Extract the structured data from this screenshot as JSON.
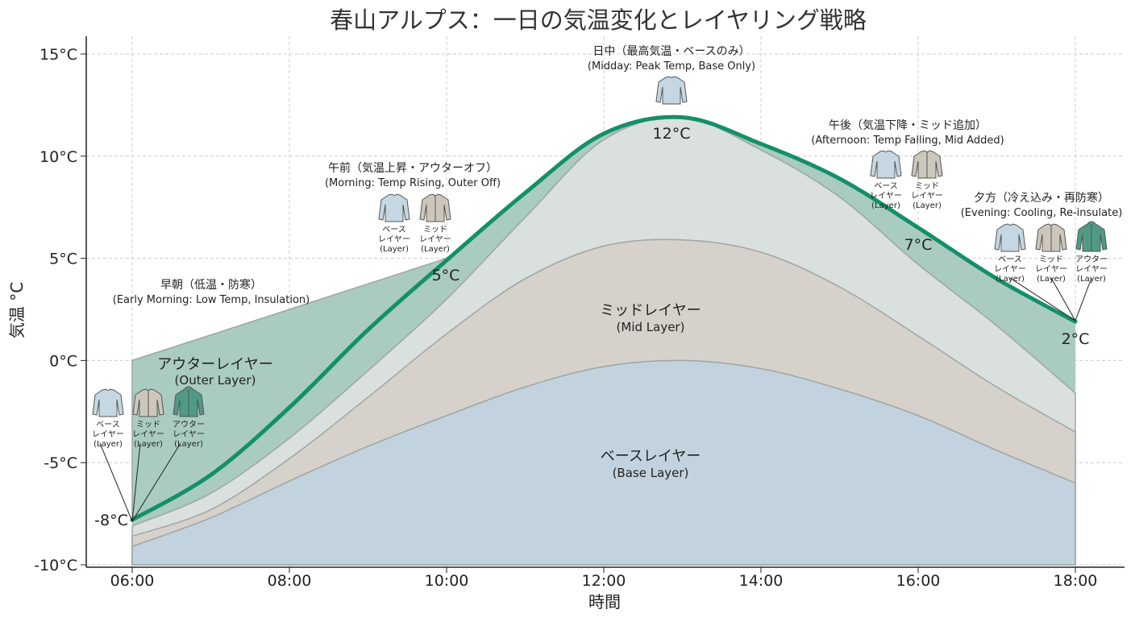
{
  "chart_data": {
    "type": "area",
    "title": "春山アルプス：一日の気温変化とレイヤリング戦略",
    "xlabel": "時間",
    "ylabel": "気温 °C",
    "x": [
      "06:00",
      "07:00",
      "08:00",
      "09:00",
      "10:00",
      "11:00",
      "12:00",
      "13:00",
      "14:00",
      "15:00",
      "16:00",
      "17:00",
      "18:00"
    ],
    "x_tick_labels": [
      "06:00",
      "08:00",
      "10:00",
      "12:00",
      "14:00",
      "16:00",
      "18:00"
    ],
    "y_tick_labels": [
      "-10°C",
      "-5°C",
      "0°C",
      "5°C",
      "10°C",
      "15°C"
    ],
    "ylim": [
      -10,
      15
    ],
    "xlim": [
      "05:30",
      "19:30"
    ],
    "grid": true,
    "series": [
      {
        "key": "temperature",
        "values": [
          -7.8,
          -5.6,
          -2.3,
          1.5,
          4.9,
          8.2,
          11.1,
          11.9,
          10.6,
          8.9,
          6.5,
          4.0,
          1.9
        ]
      },
      {
        "key": "base",
        "values": [
          -9.1,
          -7.7,
          -5.9,
          -4.2,
          -2.7,
          -1.3,
          -0.3,
          0.0,
          -0.4,
          -1.4,
          -2.7,
          -4.4,
          -6.0
        ]
      },
      {
        "key": "mid",
        "values": [
          -8.6,
          -7.3,
          -4.8,
          -1.8,
          1.3,
          4.0,
          5.6,
          5.9,
          5.3,
          3.6,
          1.2,
          -1.3,
          -3.5
        ]
      },
      {
        "key": "upper",
        "values": [
          -8.1,
          -6.5,
          -3.8,
          -0.5,
          3.0,
          7.0,
          10.8,
          11.9,
          10.3,
          8.0,
          4.7,
          1.7,
          -1.6
        ]
      },
      {
        "key": "outer",
        "x": [
          "06:00",
          "10:00"
        ],
        "values": [
          0,
          5
        ]
      }
    ],
    "band_labels": [
      {
        "jp": "アウターレイヤー",
        "en": "(Outer Layer)"
      },
      {
        "jp": "ミッドレイヤー",
        "en": "(Mid Layer)"
      },
      {
        "jp": "ベースレイヤー",
        "en": "(Base Layer)"
      }
    ],
    "point_labels": [
      "-8°C",
      "5°C",
      "12°C",
      "7°C",
      "2°C"
    ],
    "phases": [
      {
        "jp": "早朝（低温・防寒）",
        "en": "(Early Morning: Low Temp, Insulation)",
        "items": [
          "base",
          "mid",
          "outer"
        ]
      },
      {
        "jp": "午前（気温上昇・アウターオフ）",
        "en": "(Morning: Temp Rising, Outer Off)",
        "items": [
          "base",
          "mid"
        ]
      },
      {
        "jp": "日中（最高気温・ベースのみ）",
        "en": "(Midday: Peak Temp, Base Only)",
        "items": [
          "base"
        ]
      },
      {
        "jp": "午後（気温下降・ミッド追加）",
        "en": "(Afternoon: Temp Falling, Mid Added)",
        "items": [
          "base",
          "mid"
        ]
      },
      {
        "jp": "夕方（冷え込み・再防寒）",
        "en": "(Evening: Cooling, Re-insulate)",
        "items": [
          "base",
          "mid",
          "outer"
        ]
      }
    ],
    "garments": {
      "base": {
        "icon": "long-sleeve-shirt-icon",
        "line1": "ベース",
        "line2": "レイヤー",
        "line3": "(Layer)",
        "color": "#c4d7e2"
      },
      "mid": {
        "icon": "zip-jacket-icon",
        "line1": "ミッド",
        "line2": "レイヤー",
        "line3": "(Layer)",
        "color": "#cdc7bb"
      },
      "outer": {
        "icon": "hooded-jacket-icon",
        "line1": "アウター",
        "line2": "レイヤー",
        "line3": "(Layer)",
        "color": "#4f9a86"
      }
    },
    "colors": {
      "temperature_line": "#13906a",
      "base_fill": "#c2d3df",
      "mid_fill": "#d7d1cb",
      "upper_fill": "#d9e0dd",
      "outer_fill": "#aacbc0",
      "edge": "#9ea5a2"
    }
  }
}
